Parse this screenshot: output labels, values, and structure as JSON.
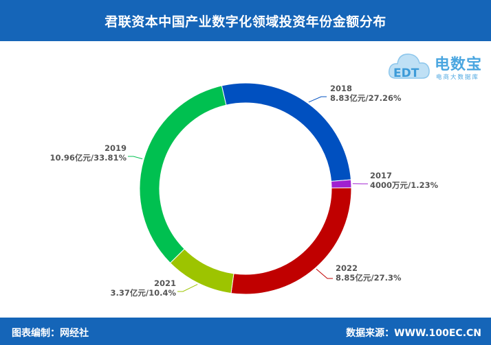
{
  "header": {
    "title": "君联资本中国产业数字化领域投资年份金额分布"
  },
  "logo": {
    "name": "电数宝",
    "subtitle": "电商大数据库",
    "mark": "EDT"
  },
  "footer": {
    "left": "图表编制：网经社",
    "right": "数据来源：WWW.100EC.CN"
  },
  "chart_data": {
    "type": "pie",
    "donut": true,
    "series": [
      {
        "label": "2018",
        "amount": "8.83亿元",
        "value": 8.83,
        "percent": 27.26,
        "percent_label": "27.26%",
        "color": "#0050c0"
      },
      {
        "label": "2017",
        "amount": "4000万元",
        "value": 0.4,
        "percent": 1.23,
        "percent_label": "1.23%",
        "color": "#a020d0"
      },
      {
        "label": "2022",
        "amount": "8.85亿元",
        "value": 8.85,
        "percent": 27.3,
        "percent_label": "27.3%",
        "color": "#c00000"
      },
      {
        "label": "2021",
        "amount": "3.37亿元",
        "value": 3.37,
        "percent": 10.4,
        "percent_label": "10.4%",
        "color": "#9dc400"
      },
      {
        "label": "2019",
        "amount": "10.96亿元",
        "value": 10.96,
        "percent": 33.81,
        "percent_label": "33.81%",
        "color": "#00c050"
      }
    ]
  }
}
